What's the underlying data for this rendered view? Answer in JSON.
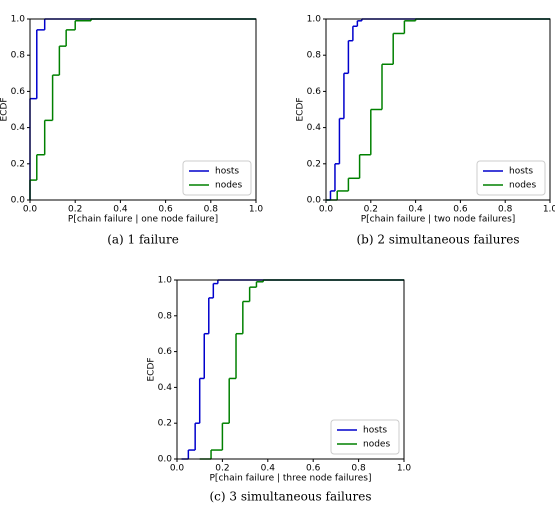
{
  "chart_data": [
    {
      "type": "step",
      "caption": "(a) 1 failure",
      "x_label": "P[chain failure | one node failure]",
      "y_label": "ECDF",
      "xlim": [
        0,
        1
      ],
      "ylim": [
        0,
        1
      ],
      "xticks": [
        {
          "value": 0,
          "label": "0.0"
        },
        0.2,
        0.4,
        0.6,
        0.8,
        {
          "value": 1,
          "label": "1.0"
        }
      ],
      "yticks": [
        {
          "value": 0,
          "label": "0.0"
        },
        0.2,
        0.4,
        0.6,
        0.8,
        {
          "value": 1,
          "label": "1.0"
        }
      ],
      "legend": "lower right",
      "series": [
        {
          "name": "hosts",
          "color": "#0000cc",
          "x": [
            0,
            0.03,
            0.065
          ],
          "values": [
            0.56,
            0.94,
            1.0
          ]
        },
        {
          "name": "nodes",
          "color": "#008000",
          "x": [
            0,
            0.03,
            0.065,
            0.1,
            0.13,
            0.16,
            0.2,
            0.27
          ],
          "values": [
            0.11,
            0.25,
            0.44,
            0.69,
            0.85,
            0.94,
            0.99,
            1.0
          ]
        }
      ]
    },
    {
      "type": "step",
      "caption": "(b) 2 simultaneous failures",
      "x_label": "P[chain failure | two node failures]",
      "y_label": "ECDF",
      "xlim": [
        0,
        1
      ],
      "ylim": [
        0,
        1
      ],
      "xticks": [
        {
          "value": 0,
          "label": "0.0"
        },
        0.2,
        0.4,
        0.6,
        0.8,
        {
          "value": 1,
          "label": "1.0"
        }
      ],
      "yticks": [
        {
          "value": 0,
          "label": "0.0"
        },
        0.2,
        0.4,
        0.6,
        0.8,
        {
          "value": 1,
          "label": "1.0"
        }
      ],
      "legend": "lower right",
      "series": [
        {
          "name": "hosts",
          "color": "#0000cc",
          "x": [
            0,
            0.02,
            0.04,
            0.06,
            0.08,
            0.1,
            0.12,
            0.14,
            0.16
          ],
          "values": [
            0,
            0.05,
            0.2,
            0.45,
            0.7,
            0.88,
            0.96,
            0.99,
            1.0
          ]
        },
        {
          "name": "nodes",
          "color": "#008000",
          "x": [
            0,
            0.05,
            0.1,
            0.15,
            0.2,
            0.25,
            0.3,
            0.35,
            0.4
          ],
          "values": [
            0,
            0.05,
            0.12,
            0.25,
            0.5,
            0.75,
            0.92,
            0.99,
            1.0
          ]
        }
      ]
    },
    {
      "type": "step",
      "caption": "(c) 3 simultaneous failures",
      "x_label": "P[chain failure | three node failures]",
      "y_label": "ECDF",
      "xlim": [
        0,
        1
      ],
      "ylim": [
        0,
        1
      ],
      "xticks": [
        {
          "value": 0,
          "label": "0.0"
        },
        0.2,
        0.4,
        0.6,
        0.8,
        {
          "value": 1,
          "label": "1.0"
        }
      ],
      "yticks": [
        {
          "value": 0,
          "label": "0.0"
        },
        0.2,
        0.4,
        0.6,
        0.8,
        {
          "value": 1,
          "label": "1.0"
        }
      ],
      "legend": "lower right",
      "series": [
        {
          "name": "hosts",
          "color": "#0000cc",
          "x": [
            0.02,
            0.05,
            0.08,
            0.1,
            0.12,
            0.14,
            0.16,
            0.18
          ],
          "values": [
            0,
            0.05,
            0.2,
            0.45,
            0.7,
            0.9,
            0.98,
            1.0
          ]
        },
        {
          "name": "nodes",
          "color": "#008000",
          "x": [
            0.1,
            0.15,
            0.2,
            0.23,
            0.26,
            0.29,
            0.32,
            0.35,
            0.38
          ],
          "values": [
            0,
            0.05,
            0.2,
            0.45,
            0.7,
            0.88,
            0.96,
            0.99,
            1.0
          ]
        }
      ]
    }
  ]
}
